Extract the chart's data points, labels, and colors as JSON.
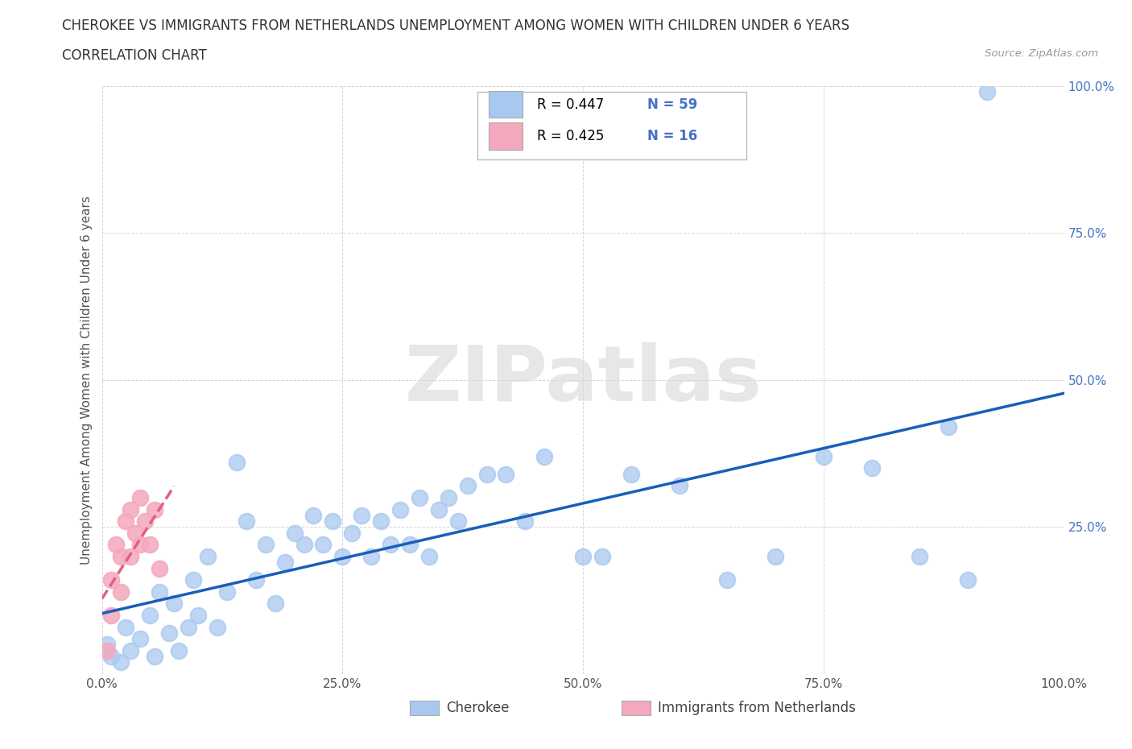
{
  "title_line1": "CHEROKEE VS IMMIGRANTS FROM NETHERLANDS UNEMPLOYMENT AMONG WOMEN WITH CHILDREN UNDER 6 YEARS",
  "title_line2": "CORRELATION CHART",
  "source_text": "Source: ZipAtlas.com",
  "ylabel": "Unemployment Among Women with Children Under 6 years",
  "xlim": [
    0.0,
    1.0
  ],
  "ylim": [
    0.0,
    1.0
  ],
  "xticks": [
    0.0,
    0.25,
    0.5,
    0.75,
    1.0
  ],
  "yticks": [
    0.0,
    0.25,
    0.5,
    0.75,
    1.0
  ],
  "xticklabels": [
    "0.0%",
    "25.0%",
    "50.0%",
    "75.0%",
    "100.0%"
  ],
  "yticklabels": [
    "",
    "25.0%",
    "50.0%",
    "75.0%",
    "100.0%"
  ],
  "legend_R1": "R = 0.447",
  "legend_N1": "N = 59",
  "legend_R2": "R = 0.425",
  "legend_N2": "N = 16",
  "blue_color": "#a8c8f0",
  "pink_color": "#f4a8be",
  "trend_blue_color": "#1a5eb8",
  "trend_pink_color": "#e06080",
  "watermark_color": "#d8d8d8",
  "watermark_text": "ZIPatlas",
  "tick_color": "#4472c4",
  "background_color": "#ffffff",
  "blue_x": [
    0.005,
    0.01,
    0.02,
    0.025,
    0.03,
    0.04,
    0.05,
    0.055,
    0.06,
    0.07,
    0.075,
    0.08,
    0.09,
    0.095,
    0.1,
    0.11,
    0.12,
    0.13,
    0.14,
    0.15,
    0.16,
    0.17,
    0.18,
    0.19,
    0.2,
    0.21,
    0.22,
    0.23,
    0.24,
    0.25,
    0.26,
    0.27,
    0.28,
    0.29,
    0.3,
    0.31,
    0.32,
    0.33,
    0.34,
    0.35,
    0.36,
    0.37,
    0.38,
    0.4,
    0.42,
    0.44,
    0.46,
    0.5,
    0.52,
    0.55,
    0.6,
    0.65,
    0.7,
    0.75,
    0.8,
    0.85,
    0.88,
    0.9,
    0.92
  ],
  "blue_y": [
    0.05,
    0.03,
    0.02,
    0.08,
    0.04,
    0.06,
    0.1,
    0.03,
    0.14,
    0.07,
    0.12,
    0.04,
    0.08,
    0.16,
    0.1,
    0.2,
    0.08,
    0.14,
    0.36,
    0.26,
    0.16,
    0.22,
    0.12,
    0.19,
    0.24,
    0.22,
    0.27,
    0.22,
    0.26,
    0.2,
    0.24,
    0.27,
    0.2,
    0.26,
    0.22,
    0.28,
    0.22,
    0.3,
    0.2,
    0.28,
    0.3,
    0.26,
    0.32,
    0.34,
    0.34,
    0.26,
    0.37,
    0.2,
    0.2,
    0.34,
    0.32,
    0.16,
    0.2,
    0.37,
    0.35,
    0.2,
    0.42,
    0.16,
    0.99
  ],
  "pink_x": [
    0.005,
    0.01,
    0.01,
    0.015,
    0.02,
    0.02,
    0.025,
    0.03,
    0.03,
    0.035,
    0.04,
    0.04,
    0.045,
    0.05,
    0.055,
    0.06
  ],
  "pink_y": [
    0.04,
    0.1,
    0.16,
    0.22,
    0.14,
    0.2,
    0.26,
    0.2,
    0.28,
    0.24,
    0.22,
    0.3,
    0.26,
    0.22,
    0.28,
    0.18
  ]
}
